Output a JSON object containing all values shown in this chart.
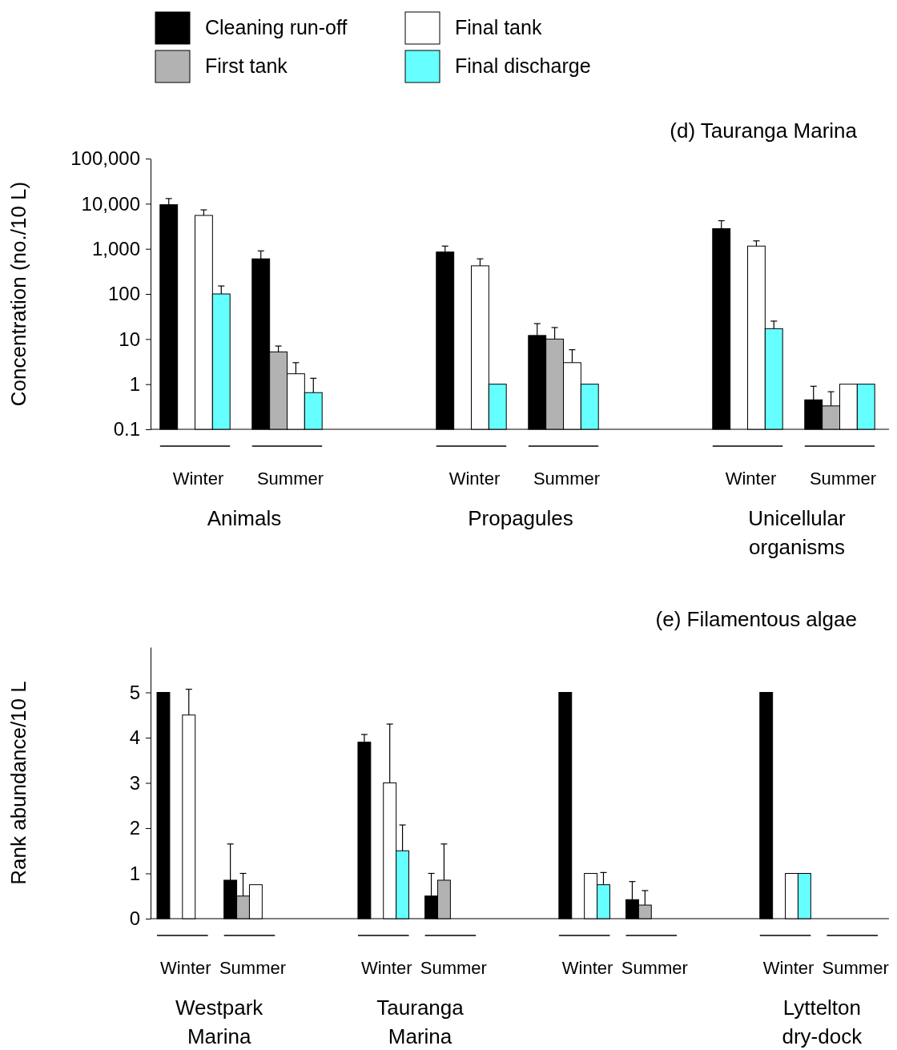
{
  "chart_data": [
    {
      "type": "bar",
      "title": "(d) Tauranga Marina",
      "ylabel": "Concentration (no./10 L)",
      "log": true,
      "legend": "top",
      "grid": false,
      "categories": [
        "Winter",
        "Summer",
        null,
        "Winter",
        "Summer",
        null,
        "Winter",
        "Summer"
      ],
      "annotations": [
        "Animals",
        "Propagules",
        "Unicellular organisms"
      ],
      "ylim": [
        0.1,
        100000
      ],
      "yticks": [
        0.1,
        1,
        10,
        100,
        {
          "value": 1000,
          "label": "1,000"
        },
        {
          "value": 10000,
          "label": "10,000"
        },
        {
          "value": 100000,
          "label": "100,000"
        }
      ],
      "series": [
        {
          "name": "Cleaning run-off",
          "color": "#000000",
          "values": [
            9500,
            600,
            null,
            850,
            12,
            null,
            2800,
            0.45
          ],
          "errors": [
            [
              9500,
              13000
            ],
            [
              600,
              900
            ],
            null,
            [
              850,
              1150
            ],
            [
              12,
              22
            ],
            null,
            [
              2800,
              4200
            ],
            [
              0.45,
              0.9
            ]
          ]
        },
        {
          "name": "First tank",
          "color": "#b2b2b2",
          "values": [
            null,
            5.2,
            null,
            null,
            10,
            null,
            null,
            0.33
          ],
          "errors": [
            null,
            [
              5.2,
              7
            ],
            null,
            null,
            [
              10,
              18
            ],
            null,
            null,
            [
              0.33,
              0.68
            ]
          ]
        },
        {
          "name": "Final tank",
          "color": "#ffffff",
          "values": [
            5500,
            1.7,
            null,
            420,
            3,
            null,
            1150,
            1
          ],
          "errors": [
            [
              5500,
              7300
            ],
            [
              1.7,
              3
            ],
            null,
            [
              420,
              600
            ],
            [
              3,
              5.8
            ],
            null,
            [
              1150,
              1500
            ],
            null
          ]
        },
        {
          "name": "Final discharge",
          "color": "#66ffff",
          "values": [
            100,
            0.65,
            null,
            1,
            1,
            null,
            17,
            1
          ],
          "errors": [
            [
              100,
              150
            ],
            [
              0.65,
              1.35
            ],
            null,
            null,
            null,
            null,
            [
              17,
              25
            ],
            null
          ]
        }
      ]
    },
    {
      "type": "bar",
      "title": "(e) Filamentous algae",
      "ylabel": "Rank abundance/10 L",
      "legend": false,
      "grid": false,
      "categories": [
        "Winter",
        "Summer",
        null,
        "Winter",
        "Summer",
        null,
        "Winter",
        "Summer",
        null,
        "Winter",
        "Summer"
      ],
      "annotations": [
        "Westpark Marina",
        "Tauranga Marina",
        null,
        "Lyttelton dry-dock"
      ],
      "ylim": [
        0,
        6
      ],
      "yticks": [
        0,
        1,
        2,
        3,
        4,
        5
      ],
      "series": [
        {
          "color": "#000000",
          "values": [
            5,
            0.85,
            null,
            3.9,
            0.5,
            null,
            5,
            0.42,
            null,
            5,
            null
          ],
          "errors": [
            null,
            [
              0.85,
              1.65
            ],
            null,
            [
              3.9,
              4.07
            ],
            [
              0.5,
              1
            ],
            null,
            null,
            [
              0.42,
              0.82
            ],
            null,
            null,
            null
          ]
        },
        {
          "color": "#b2b2b2",
          "values": [
            null,
            0.5,
            null,
            null,
            0.85,
            null,
            null,
            0.3,
            null,
            null,
            null
          ],
          "errors": [
            null,
            [
              0.5,
              1
            ],
            null,
            null,
            [
              0.85,
              1.65
            ],
            null,
            null,
            [
              0.3,
              0.62
            ],
            null,
            null,
            null
          ]
        },
        {
          "color": "#ffffff",
          "values": [
            4.5,
            0.75,
            null,
            3,
            null,
            null,
            1,
            null,
            null,
            1,
            null
          ],
          "errors": [
            [
              4.5,
              5.07
            ],
            null,
            null,
            [
              3,
              4.3
            ],
            null,
            null,
            null,
            null,
            null,
            null,
            null
          ]
        },
        {
          "color": "#66ffff",
          "values": [
            null,
            null,
            null,
            1.5,
            null,
            null,
            0.75,
            null,
            null,
            1,
            null
          ],
          "errors": [
            null,
            null,
            null,
            [
              1.5,
              2.07
            ],
            null,
            null,
            [
              0.75,
              1.02
            ],
            null,
            null,
            null,
            null
          ]
        }
      ]
    }
  ]
}
